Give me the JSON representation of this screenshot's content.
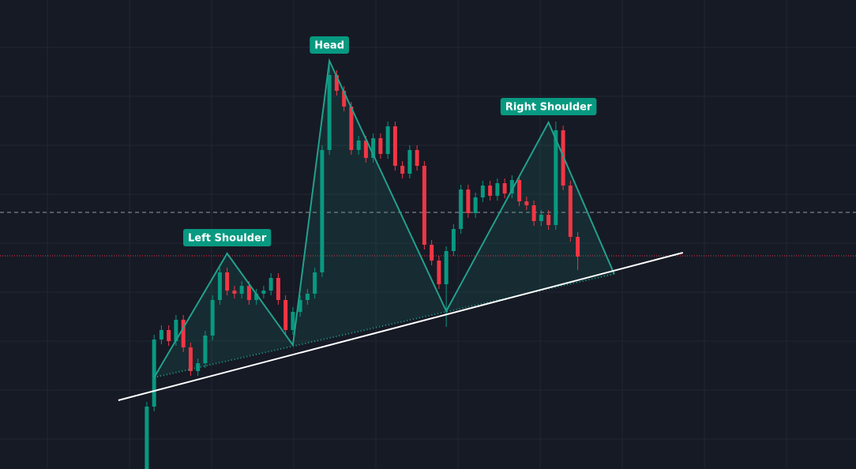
{
  "chart_data": {
    "type": "candlestick",
    "xlim": [
      -20.1,
      97.1
    ],
    "ylim": [
      0,
      594
    ],
    "up_color": "#089981",
    "down_color": "#f23645",
    "pattern_color": "#22a08c",
    "open": [
      0,
      79,
      164,
      176,
      162,
      189,
      154,
      124,
      134,
      169,
      214,
      249,
      226,
      222,
      232,
      214,
      222,
      226,
      242,
      214,
      176,
      199,
      214,
      222,
      249,
      404,
      499,
      479,
      459,
      404,
      416,
      394,
      419,
      399,
      434,
      384,
      374,
      404,
      384,
      284,
      264,
      234,
      276,
      304,
      354,
      324,
      344,
      359,
      346,
      362,
      349,
      366,
      339,
      334,
      314,
      322,
      309,
      429,
      359,
      294
    ],
    "high": [
      85,
      170,
      182,
      182,
      195,
      195,
      160,
      140,
      175,
      220,
      255,
      255,
      232,
      238,
      238,
      228,
      232,
      248,
      248,
      220,
      205,
      220,
      228,
      255,
      410,
      515,
      505,
      485,
      465,
      422,
      422,
      425,
      425,
      440,
      440,
      390,
      410,
      410,
      390,
      290,
      270,
      282,
      310,
      360,
      360,
      350,
      365,
      365,
      368,
      368,
      372,
      372,
      345,
      340,
      328,
      328,
      440,
      435,
      365,
      300
    ],
    "low": [
      0,
      73,
      158,
      156,
      156,
      148,
      118,
      118,
      128,
      163,
      208,
      220,
      216,
      216,
      208,
      208,
      216,
      220,
      208,
      170,
      170,
      193,
      208,
      216,
      243,
      398,
      473,
      453,
      398,
      398,
      388,
      388,
      393,
      393,
      378,
      368,
      368,
      378,
      278,
      258,
      228,
      180,
      270,
      298,
      318,
      318,
      338,
      340,
      340,
      343,
      343,
      333,
      328,
      308,
      308,
      303,
      303,
      353,
      288,
      252
    ],
    "close": [
      79,
      164,
      176,
      162,
      189,
      154,
      124,
      134,
      169,
      214,
      249,
      226,
      222,
      232,
      214,
      222,
      226,
      242,
      214,
      176,
      199,
      214,
      222,
      249,
      404,
      499,
      479,
      459,
      404,
      416,
      394,
      419,
      399,
      434,
      384,
      374,
      404,
      384,
      284,
      264,
      234,
      276,
      304,
      354,
      324,
      344,
      359,
      346,
      362,
      349,
      366,
      339,
      334,
      314,
      322,
      309,
      429,
      359,
      294,
      269
    ],
    "pattern": {
      "x": [
        1,
        11,
        20,
        25,
        41,
        55,
        64
      ],
      "y": [
        116,
        273,
        157,
        517,
        200,
        439,
        247
      ]
    },
    "neckline": {
      "x": [
        -3.9,
        73.4
      ],
      "y": [
        87,
        274
      ]
    },
    "levels": [
      {
        "value": 325,
        "color": "#9598a1"
      },
      {
        "value": 270,
        "color": "#f23645"
      }
    ],
    "annotations": [
      {
        "text": "Left Shoulder",
        "x": 11,
        "y": 273
      },
      {
        "text": "Head",
        "x": 25,
        "y": 517
      },
      {
        "text": "Right Shoulder",
        "x": 55,
        "y": 439
      }
    ]
  }
}
